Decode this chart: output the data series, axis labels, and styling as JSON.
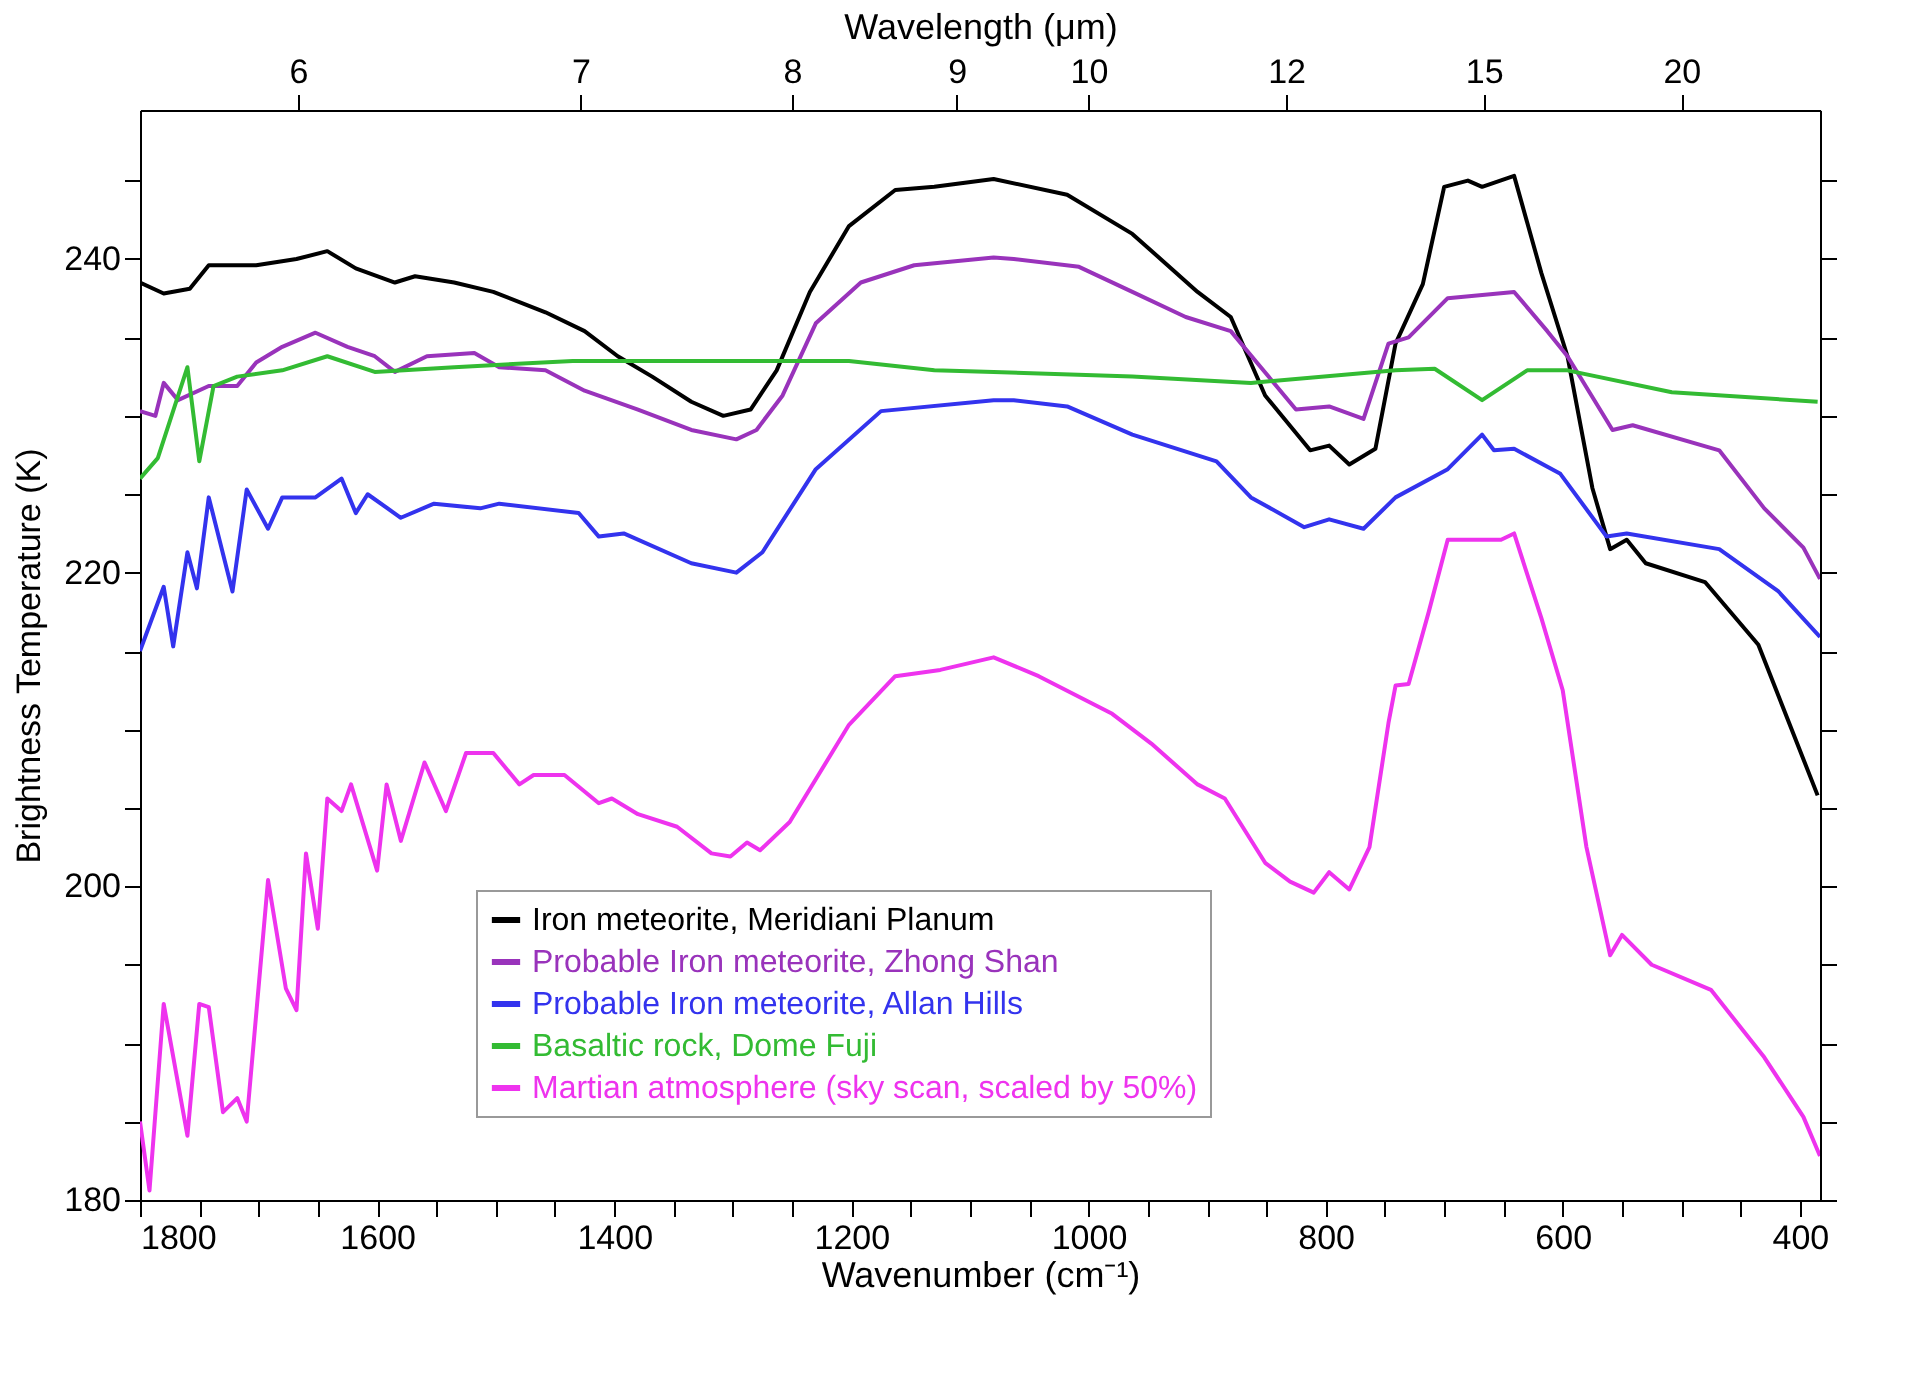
{
  "chart_data": {
    "type": "line",
    "xlabel": "Wavenumber (cm⁻¹)",
    "ylabel": "Brightness Temperature (K)",
    "x2label": "Wavelength (μm)",
    "xlim": [
      1800,
      383
    ],
    "ylim": [
      180,
      249.5
    ],
    "xticks": [
      1800,
      {
        "value": 1750,
        "label": null
      },
      {
        "value": 1700,
        "label": null
      },
      {
        "value": 1650,
        "label": null
      },
      1600,
      {
        "value": 1550,
        "label": null
      },
      {
        "value": 1500,
        "label": null
      },
      {
        "value": 1450,
        "label": null
      },
      1400,
      {
        "value": 1350,
        "label": null
      },
      {
        "value": 1300,
        "label": null
      },
      {
        "value": 1250,
        "label": null
      },
      1200,
      {
        "value": 1150,
        "label": null
      },
      {
        "value": 1100,
        "label": null
      },
      {
        "value": 1050,
        "label": null
      },
      1000,
      {
        "value": 950,
        "label": null
      },
      {
        "value": 900,
        "label": null
      },
      {
        "value": 850,
        "label": null
      },
      800,
      {
        "value": 750,
        "label": null
      },
      {
        "value": 700,
        "label": null
      },
      {
        "value": 650,
        "label": null
      },
      600,
      {
        "value": 550,
        "label": null
      },
      {
        "value": 500,
        "label": null
      },
      {
        "value": 450,
        "label": null
      },
      400
    ],
    "annotations": [
      "6",
      "7",
      "8",
      "9",
      "10",
      "12",
      "15",
      "20"
    ],
    "yticks": [
      180,
      {
        "value": 185,
        "label": null
      },
      {
        "value": 190,
        "label": null
      },
      {
        "value": 195,
        "label": null
      },
      200,
      {
        "value": 205,
        "label": null
      },
      {
        "value": 210,
        "label": null
      },
      {
        "value": 215,
        "label": null
      },
      220,
      {
        "value": 225,
        "label": null
      },
      {
        "value": 230,
        "label": null
      },
      {
        "value": 235,
        "label": null
      },
      240,
      {
        "value": 245,
        "label": null
      }
    ],
    "grid": false,
    "legend": "bottom",
    "marker": "none",
    "line_style": "solid",
    "series": [
      {
        "name": "Iron meteorite, Meridiani Planum",
        "color": "#000000",
        "x": [
          1800,
          1780,
          1758,
          1742,
          1702,
          1668,
          1642,
          1618,
          1585,
          1568,
          1535,
          1502,
          1458,
          1425,
          1397,
          1368,
          1335,
          1308,
          1285,
          1263,
          1235,
          1202,
          1163,
          1130,
          1080,
          1018,
          963,
          908,
          880,
          851,
          813,
          797,
          780,
          758,
          741,
          718,
          700,
          680,
          668,
          641,
          618,
          596,
          575,
          560,
          546,
          530,
          480,
          435,
          385
        ],
        "values": [
          238.5,
          237.8,
          238.1,
          239.6,
          239.6,
          240,
          240.5,
          239.4,
          238.5,
          238.9,
          238.5,
          237.9,
          236.6,
          235.4,
          233.8,
          232.5,
          230.9,
          230,
          230.4,
          232.9,
          237.9,
          242.1,
          244.4,
          244.6,
          245.1,
          244.1,
          241.6,
          237.9,
          236.3,
          231.3,
          227.8,
          228.1,
          226.9,
          227.9,
          234.6,
          238.4,
          244.6,
          245,
          244.6,
          245.3,
          239.1,
          233.8,
          225.4,
          221.5,
          222.1,
          220.6,
          219.4,
          215.4,
          205.8
        ]
      },
      {
        "name": "Probable Iron meteorite, Zhong Shan",
        "color": "#9933bb",
        "x": [
          1800,
          1787,
          1780,
          1768,
          1742,
          1718,
          1702,
          1680,
          1652,
          1625,
          1602,
          1585,
          1558,
          1518,
          1497,
          1458,
          1425,
          1380,
          1335,
          1297,
          1280,
          1258,
          1230,
          1192,
          1147,
          1080,
          1063,
          1008,
          963,
          918,
          880,
          858,
          825,
          797,
          768,
          747,
          730,
          697,
          641,
          613,
          596,
          558,
          541,
          468,
          430,
          397,
          383
        ],
        "values": [
          230.3,
          230,
          232.1,
          231,
          231.9,
          231.9,
          233.4,
          234.4,
          235.3,
          234.4,
          233.8,
          232.8,
          233.8,
          234,
          233.1,
          232.9,
          231.6,
          230.4,
          229.1,
          228.5,
          229.1,
          231.3,
          235.9,
          238.5,
          239.6,
          240.1,
          240,
          239.5,
          237.9,
          236.3,
          235.4,
          233.4,
          230.4,
          230.6,
          229.8,
          234.6,
          235,
          237.5,
          237.9,
          235.4,
          233.8,
          229.1,
          229.4,
          227.8,
          224.1,
          221.6,
          219.6
        ]
      },
      {
        "name": "Probable Iron meteorite, Allan Hills",
        "color": "#3333ee",
        "x": [
          1800,
          1780,
          1772,
          1760,
          1752,
          1742,
          1722,
          1710,
          1692,
          1680,
          1652,
          1630,
          1618,
          1608,
          1580,
          1552,
          1513,
          1497,
          1430,
          1413,
          1392,
          1335,
          1297,
          1275,
          1230,
          1175,
          1080,
          1063,
          1018,
          963,
          892,
          863,
          818,
          797,
          768,
          741,
          697,
          668,
          658,
          641,
          602,
          563,
          546,
          468,
          418,
          383
        ],
        "values": [
          215,
          219.1,
          215.3,
          221.3,
          219,
          224.8,
          218.8,
          225.3,
          222.8,
          224.8,
          224.8,
          226,
          223.8,
          225,
          223.5,
          224.4,
          224.1,
          224.4,
          223.8,
          222.3,
          222.5,
          220.6,
          220,
          221.3,
          226.6,
          230.3,
          231,
          231,
          230.6,
          228.8,
          227.1,
          224.8,
          222.9,
          223.4,
          222.8,
          224.8,
          226.6,
          228.8,
          227.8,
          227.9,
          226.3,
          222.3,
          222.5,
          221.5,
          218.8,
          215.9
        ]
      },
      {
        "name": "Basaltic rock, Dome Fuji",
        "color": "#33bb33",
        "x": [
          1800,
          1785,
          1760,
          1750,
          1738,
          1718,
          1680,
          1642,
          1602,
          1535,
          1435,
          1313,
          1202,
          1130,
          1080,
          963,
          863,
          741,
          708,
          668,
          630,
          596,
          508,
          385
        ],
        "values": [
          226,
          227.3,
          233.1,
          227.1,
          231.9,
          232.5,
          232.9,
          233.8,
          232.8,
          233.1,
          233.5,
          233.5,
          233.5,
          232.9,
          232.8,
          232.5,
          232.1,
          232.9,
          233,
          231,
          232.9,
          232.9,
          231.5,
          230.9
        ]
      },
      {
        "name": "Martian atmosphere (sky scan, scaled by 50%)",
        "color": "#ee33ee",
        "x": [
          1800,
          1792,
          1780,
          1760,
          1750,
          1742,
          1730,
          1718,
          1710,
          1692,
          1677,
          1668,
          1660,
          1650,
          1642,
          1630,
          1622,
          1600,
          1592,
          1580,
          1560,
          1542,
          1525,
          1502,
          1480,
          1468,
          1442,
          1413,
          1402,
          1380,
          1347,
          1318,
          1302,
          1288,
          1277,
          1252,
          1202,
          1163,
          1125,
          1080,
          1042,
          980,
          947,
          908,
          885,
          851,
          830,
          810,
          797,
          780,
          763,
          747,
          741,
          730,
          713,
          697,
          652,
          641,
          618,
          600,
          580,
          560,
          550,
          525,
          475,
          430,
          397,
          383
        ],
        "values": [
          185,
          180.6,
          192.5,
          184.1,
          192.5,
          192.3,
          185.6,
          186.5,
          185,
          200.4,
          193.5,
          192.1,
          202.1,
          197.3,
          205.6,
          204.8,
          206.5,
          201,
          206.5,
          202.9,
          207.9,
          204.8,
          208.5,
          208.5,
          206.5,
          207.1,
          207.1,
          205.3,
          205.6,
          204.6,
          203.8,
          202.1,
          201.9,
          202.8,
          202.3,
          204.1,
          210.3,
          213.4,
          213.8,
          214.6,
          213.4,
          211,
          209.1,
          206.5,
          205.6,
          201.5,
          200.3,
          199.6,
          200.9,
          199.8,
          202.5,
          210.4,
          212.8,
          212.9,
          217.5,
          222.1,
          222.1,
          222.5,
          217.1,
          212.5,
          202.5,
          195.6,
          196.9,
          195,
          193.4,
          189.1,
          185.3,
          182.8
        ]
      }
    ]
  }
}
